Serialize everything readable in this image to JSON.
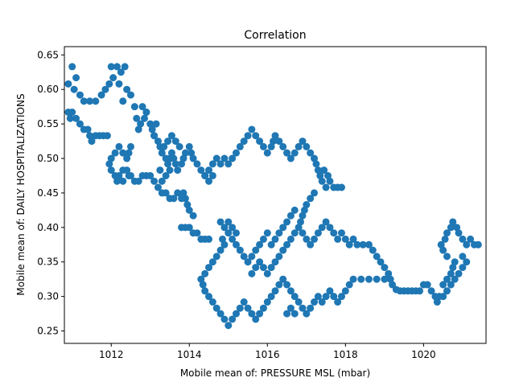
{
  "chart_data": {
    "type": "scatter",
    "title": "Correlation",
    "xlabel": "Mobile mean of: PRESSURE MSL (mbar)",
    "ylabel": "Mobile mean of: DAILY HOSPITALIZATIONS",
    "xlim": [
      1010.8,
      1021.6
    ],
    "ylim": [
      0.232,
      0.662
    ],
    "x_ticks": [
      1012,
      1014,
      1016,
      1018,
      1020
    ],
    "y_ticks": [
      0.25,
      0.3,
      0.35,
      0.4,
      0.45,
      0.5,
      0.55,
      0.6,
      0.65
    ],
    "x_tick_labels": [
      "1012",
      "1014",
      "1016",
      "1018",
      "1020"
    ],
    "y_tick_labels": [
      "0.25",
      "0.30",
      "0.35",
      "0.40",
      "0.45",
      "0.50",
      "0.55",
      "0.60",
      "0.65"
    ],
    "grid": false,
    "legend": "none",
    "marker_color": "#1f77b4",
    "points": [
      [
        1011.0,
        0.633
      ],
      [
        1011.1,
        0.617
      ],
      [
        1010.9,
        0.608
      ],
      [
        1011.05,
        0.6
      ],
      [
        1011.2,
        0.592
      ],
      [
        1011.3,
        0.583
      ],
      [
        1011.45,
        0.583
      ],
      [
        1011.6,
        0.583
      ],
      [
        1011.75,
        0.592
      ],
      [
        1011.85,
        0.6
      ],
      [
        1011.95,
        0.608
      ],
      [
        1012.05,
        0.617
      ],
      [
        1012.0,
        0.633
      ],
      [
        1012.15,
        0.633
      ],
      [
        1012.25,
        0.625
      ],
      [
        1012.35,
        0.633
      ],
      [
        1012.2,
        0.608
      ],
      [
        1012.4,
        0.6
      ],
      [
        1012.5,
        0.592
      ],
      [
        1012.3,
        0.583
      ],
      [
        1012.6,
        0.575
      ],
      [
        1012.65,
        0.558
      ],
      [
        1012.7,
        0.542
      ],
      [
        1012.75,
        0.55
      ],
      [
        1012.85,
        0.558
      ],
      [
        1012.9,
        0.567
      ],
      [
        1013.0,
        0.55
      ],
      [
        1013.05,
        0.542
      ],
      [
        1013.1,
        0.533
      ],
      [
        1013.2,
        0.525
      ],
      [
        1013.25,
        0.517
      ],
      [
        1013.3,
        0.508
      ],
      [
        1013.4,
        0.5
      ],
      [
        1013.45,
        0.492
      ],
      [
        1013.5,
        0.5
      ],
      [
        1013.55,
        0.508
      ],
      [
        1013.6,
        0.5
      ],
      [
        1013.65,
        0.492
      ],
      [
        1013.7,
        0.483
      ],
      [
        1013.8,
        0.492
      ],
      [
        1013.85,
        0.5
      ],
      [
        1013.9,
        0.508
      ],
      [
        1014.0,
        0.517
      ],
      [
        1014.05,
        0.508
      ],
      [
        1014.1,
        0.5
      ],
      [
        1014.2,
        0.492
      ],
      [
        1014.3,
        0.483
      ],
      [
        1014.4,
        0.475
      ],
      [
        1014.5,
        0.483
      ],
      [
        1014.6,
        0.492
      ],
      [
        1014.7,
        0.5
      ],
      [
        1014.8,
        0.492
      ],
      [
        1014.9,
        0.5
      ],
      [
        1015.0,
        0.492
      ],
      [
        1015.1,
        0.5
      ],
      [
        1015.2,
        0.508
      ],
      [
        1015.3,
        0.517
      ],
      [
        1015.4,
        0.525
      ],
      [
        1015.5,
        0.533
      ],
      [
        1015.6,
        0.542
      ],
      [
        1015.7,
        0.533
      ],
      [
        1015.8,
        0.525
      ],
      [
        1015.9,
        0.517
      ],
      [
        1016.0,
        0.508
      ],
      [
        1016.1,
        0.517
      ],
      [
        1016.15,
        0.525
      ],
      [
        1016.2,
        0.533
      ],
      [
        1016.3,
        0.525
      ],
      [
        1016.4,
        0.517
      ],
      [
        1016.5,
        0.508
      ],
      [
        1016.6,
        0.5
      ],
      [
        1016.7,
        0.508
      ],
      [
        1016.8,
        0.517
      ],
      [
        1016.9,
        0.525
      ],
      [
        1017.0,
        0.517
      ],
      [
        1017.1,
        0.508
      ],
      [
        1017.2,
        0.5
      ],
      [
        1017.25,
        0.492
      ],
      [
        1017.3,
        0.483
      ],
      [
        1017.35,
        0.475
      ],
      [
        1017.4,
        0.467
      ],
      [
        1017.5,
        0.458
      ],
      [
        1017.6,
        0.467
      ],
      [
        1017.7,
        0.458
      ],
      [
        1017.8,
        0.458
      ],
      [
        1017.9,
        0.458
      ],
      [
        1017.45,
        0.483
      ],
      [
        1017.55,
        0.475
      ],
      [
        1017.2,
        0.45
      ],
      [
        1017.1,
        0.442
      ],
      [
        1017.0,
        0.433
      ],
      [
        1016.95,
        0.425
      ],
      [
        1016.9,
        0.417
      ],
      [
        1016.85,
        0.408
      ],
      [
        1016.8,
        0.4
      ],
      [
        1016.9,
        0.392
      ],
      [
        1017.0,
        0.383
      ],
      [
        1017.1,
        0.375
      ],
      [
        1017.2,
        0.383
      ],
      [
        1017.3,
        0.392
      ],
      [
        1017.4,
        0.4
      ],
      [
        1017.5,
        0.408
      ],
      [
        1017.6,
        0.4
      ],
      [
        1017.7,
        0.392
      ],
      [
        1017.8,
        0.383
      ],
      [
        1017.9,
        0.392
      ],
      [
        1018.0,
        0.383
      ],
      [
        1018.1,
        0.375
      ],
      [
        1018.2,
        0.383
      ],
      [
        1018.3,
        0.375
      ],
      [
        1018.45,
        0.375
      ],
      [
        1018.6,
        0.375
      ],
      [
        1018.7,
        0.367
      ],
      [
        1018.8,
        0.358
      ],
      [
        1018.9,
        0.35
      ],
      [
        1019.0,
        0.342
      ],
      [
        1019.1,
        0.333
      ],
      [
        1019.15,
        0.325
      ],
      [
        1019.2,
        0.317
      ],
      [
        1019.3,
        0.31
      ],
      [
        1019.4,
        0.308
      ],
      [
        1019.5,
        0.308
      ],
      [
        1019.6,
        0.308
      ],
      [
        1019.7,
        0.308
      ],
      [
        1019.8,
        0.308
      ],
      [
        1019.9,
        0.308
      ],
      [
        1020.0,
        0.317
      ],
      [
        1020.1,
        0.317
      ],
      [
        1020.2,
        0.308
      ],
      [
        1020.3,
        0.3
      ],
      [
        1020.35,
        0.292
      ],
      [
        1020.4,
        0.3
      ],
      [
        1020.5,
        0.317
      ],
      [
        1020.6,
        0.325
      ],
      [
        1020.7,
        0.333
      ],
      [
        1020.75,
        0.342
      ],
      [
        1020.8,
        0.35
      ],
      [
        1020.6,
        0.358
      ],
      [
        1020.5,
        0.367
      ],
      [
        1020.45,
        0.375
      ],
      [
        1020.55,
        0.383
      ],
      [
        1020.6,
        0.392
      ],
      [
        1020.7,
        0.4
      ],
      [
        1020.75,
        0.408
      ],
      [
        1020.85,
        0.4
      ],
      [
        1020.9,
        0.392
      ],
      [
        1021.0,
        0.383
      ],
      [
        1021.1,
        0.375
      ],
      [
        1021.2,
        0.383
      ],
      [
        1021.3,
        0.375
      ],
      [
        1021.4,
        0.375
      ],
      [
        1021.0,
        0.358
      ],
      [
        1021.1,
        0.35
      ],
      [
        1021.0,
        0.342
      ],
      [
        1020.9,
        0.333
      ],
      [
        1020.8,
        0.325
      ],
      [
        1020.7,
        0.317
      ],
      [
        1020.6,
        0.308
      ],
      [
        1020.5,
        0.3
      ],
      [
        1016.0,
        0.392
      ],
      [
        1015.9,
        0.383
      ],
      [
        1015.8,
        0.375
      ],
      [
        1015.7,
        0.367
      ],
      [
        1015.6,
        0.358
      ],
      [
        1015.5,
        0.35
      ],
      [
        1015.4,
        0.358
      ],
      [
        1015.3,
        0.367
      ],
      [
        1015.2,
        0.375
      ],
      [
        1015.1,
        0.383
      ],
      [
        1015.0,
        0.392
      ],
      [
        1014.9,
        0.4
      ],
      [
        1014.8,
        0.408
      ],
      [
        1014.9,
        0.375
      ],
      [
        1014.8,
        0.367
      ],
      [
        1014.7,
        0.358
      ],
      [
        1014.6,
        0.35
      ],
      [
        1014.5,
        0.342
      ],
      [
        1014.4,
        0.333
      ],
      [
        1014.3,
        0.325
      ],
      [
        1014.35,
        0.317
      ],
      [
        1014.4,
        0.308
      ],
      [
        1014.5,
        0.3
      ],
      [
        1014.6,
        0.292
      ],
      [
        1014.7,
        0.283
      ],
      [
        1014.8,
        0.275
      ],
      [
        1014.9,
        0.267
      ],
      [
        1015.0,
        0.258
      ],
      [
        1015.1,
        0.267
      ],
      [
        1015.2,
        0.275
      ],
      [
        1015.3,
        0.283
      ],
      [
        1015.4,
        0.292
      ],
      [
        1015.5,
        0.283
      ],
      [
        1015.6,
        0.275
      ],
      [
        1015.7,
        0.267
      ],
      [
        1015.8,
        0.275
      ],
      [
        1015.9,
        0.283
      ],
      [
        1016.0,
        0.292
      ],
      [
        1016.1,
        0.3
      ],
      [
        1016.2,
        0.308
      ],
      [
        1016.3,
        0.317
      ],
      [
        1016.4,
        0.325
      ],
      [
        1016.5,
        0.317
      ],
      [
        1016.6,
        0.308
      ],
      [
        1016.7,
        0.3
      ],
      [
        1016.8,
        0.292
      ],
      [
        1016.9,
        0.283
      ],
      [
        1017.0,
        0.275
      ],
      [
        1017.1,
        0.283
      ],
      [
        1017.2,
        0.292
      ],
      [
        1017.3,
        0.3
      ],
      [
        1017.4,
        0.292
      ],
      [
        1017.5,
        0.3
      ],
      [
        1017.6,
        0.308
      ],
      [
        1017.7,
        0.3
      ],
      [
        1017.8,
        0.292
      ],
      [
        1017.9,
        0.3
      ],
      [
        1018.0,
        0.308
      ],
      [
        1018.1,
        0.317
      ],
      [
        1018.2,
        0.325
      ],
      [
        1018.4,
        0.325
      ],
      [
        1018.6,
        0.325
      ],
      [
        1018.8,
        0.325
      ],
      [
        1019.0,
        0.325
      ],
      [
        1016.5,
        0.275
      ],
      [
        1016.6,
        0.283
      ],
      [
        1016.7,
        0.275
      ],
      [
        1015.6,
        0.333
      ],
      [
        1015.7,
        0.342
      ],
      [
        1015.8,
        0.35
      ],
      [
        1015.9,
        0.342
      ],
      [
        1016.0,
        0.333
      ],
      [
        1016.1,
        0.342
      ],
      [
        1016.2,
        0.35
      ],
      [
        1016.3,
        0.358
      ],
      [
        1016.4,
        0.367
      ],
      [
        1016.5,
        0.375
      ],
      [
        1016.6,
        0.383
      ],
      [
        1016.7,
        0.392
      ],
      [
        1016.5,
        0.408
      ],
      [
        1016.6,
        0.417
      ],
      [
        1016.7,
        0.425
      ],
      [
        1016.4,
        0.4
      ],
      [
        1016.3,
        0.392
      ],
      [
        1016.2,
        0.383
      ],
      [
        1016.1,
        0.375
      ],
      [
        1015.0,
        0.408
      ],
      [
        1015.1,
        0.4
      ],
      [
        1015.2,
        0.392
      ],
      [
        1014.85,
        0.383
      ],
      [
        1014.2,
        0.392
      ],
      [
        1014.1,
        0.392
      ],
      [
        1014.0,
        0.4
      ],
      [
        1013.9,
        0.4
      ],
      [
        1013.8,
        0.4
      ],
      [
        1014.3,
        0.383
      ],
      [
        1014.4,
        0.383
      ],
      [
        1014.5,
        0.383
      ],
      [
        1014.1,
        0.417
      ],
      [
        1014.0,
        0.425
      ],
      [
        1013.95,
        0.433
      ],
      [
        1013.9,
        0.442
      ],
      [
        1013.85,
        0.45
      ],
      [
        1013.8,
        0.442
      ],
      [
        1013.7,
        0.45
      ],
      [
        1013.6,
        0.442
      ],
      [
        1013.5,
        0.442
      ],
      [
        1013.4,
        0.45
      ],
      [
        1013.3,
        0.45
      ],
      [
        1013.2,
        0.458
      ],
      [
        1013.1,
        0.467
      ],
      [
        1013.0,
        0.475
      ],
      [
        1012.9,
        0.475
      ],
      [
        1012.8,
        0.475
      ],
      [
        1012.7,
        0.467
      ],
      [
        1012.6,
        0.467
      ],
      [
        1012.5,
        0.475
      ],
      [
        1012.4,
        0.483
      ],
      [
        1012.3,
        0.483
      ],
      [
        1012.2,
        0.475
      ],
      [
        1012.1,
        0.475
      ],
      [
        1012.0,
        0.483
      ],
      [
        1011.95,
        0.492
      ],
      [
        1012.0,
        0.5
      ],
      [
        1012.1,
        0.508
      ],
      [
        1012.2,
        0.517
      ],
      [
        1012.3,
        0.508
      ],
      [
        1012.4,
        0.5
      ],
      [
        1012.45,
        0.508
      ],
      [
        1012.5,
        0.517
      ],
      [
        1012.15,
        0.467
      ],
      [
        1012.3,
        0.467
      ],
      [
        1012.45,
        0.475
      ],
      [
        1011.9,
        0.533
      ],
      [
        1011.8,
        0.533
      ],
      [
        1011.7,
        0.533
      ],
      [
        1011.6,
        0.533
      ],
      [
        1011.5,
        0.525
      ],
      [
        1011.45,
        0.533
      ],
      [
        1011.4,
        0.542
      ],
      [
        1011.3,
        0.542
      ],
      [
        1011.2,
        0.55
      ],
      [
        1011.1,
        0.558
      ],
      [
        1011.0,
        0.567
      ],
      [
        1010.9,
        0.567
      ],
      [
        1010.95,
        0.558
      ],
      [
        1014.5,
        0.467
      ],
      [
        1014.4,
        0.475
      ],
      [
        1014.6,
        0.475
      ],
      [
        1013.5,
        0.483
      ],
      [
        1013.4,
        0.475
      ],
      [
        1013.3,
        0.467
      ],
      [
        1013.25,
        0.483
      ],
      [
        1013.35,
        0.517
      ],
      [
        1013.45,
        0.525
      ],
      [
        1013.55,
        0.533
      ],
      [
        1013.65,
        0.525
      ],
      [
        1013.75,
        0.517
      ],
      [
        1013.1,
        0.533
      ],
      [
        1013.15,
        0.55
      ],
      [
        1012.8,
        0.575
      ],
      [
        1012.9,
        0.567
      ]
    ]
  }
}
